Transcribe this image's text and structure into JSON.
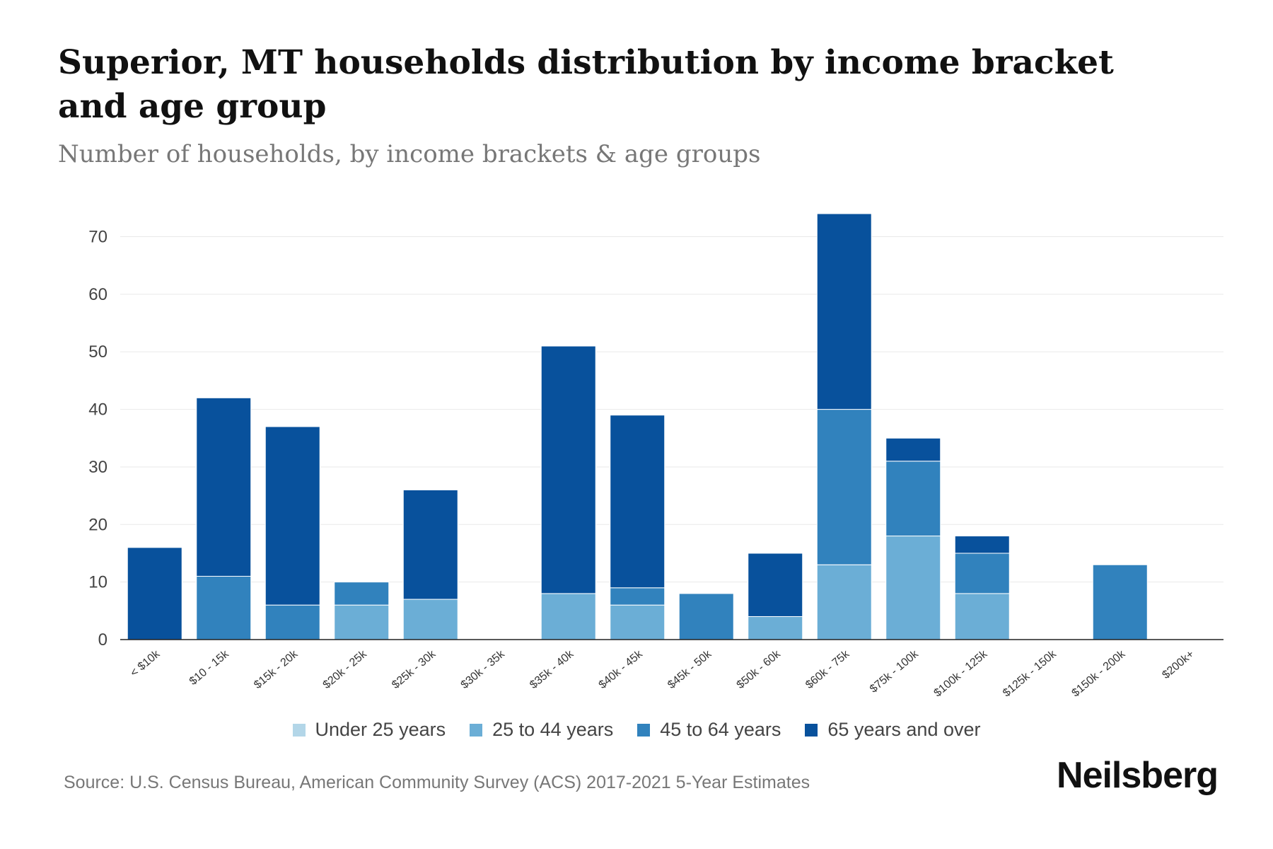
{
  "chart_data": {
    "type": "bar",
    "stacked": true,
    "title": "Superior, MT households distribution by income bracket and age group",
    "subtitle": "Number of households, by income brackets & age groups",
    "xlabel": "",
    "ylabel": "",
    "ylim": [
      0,
      74
    ],
    "yticks": [
      0,
      10,
      20,
      30,
      40,
      50,
      60,
      70
    ],
    "grid": true,
    "legend_position": "bottom-center",
    "categories": [
      "< $10k",
      "$10 - 15k",
      "$15k - 20k",
      "$20k - 25k",
      "$25k - 30k",
      "$30k - 35k",
      "$35k - 40k",
      "$40k - 45k",
      "$45k - 50k",
      "$50k - 60k",
      "$60k - 75k",
      "$75k - 100k",
      "$100k - 125k",
      "$125k - 150k",
      "$150k - 200k",
      "$200k+"
    ],
    "series": [
      {
        "name": "Under 25 years",
        "color": "#b3d6e8",
        "values": [
          0,
          0,
          0,
          0,
          0,
          0,
          0,
          0,
          0,
          0,
          0,
          0,
          0,
          0,
          0,
          0
        ]
      },
      {
        "name": "25 to 44 years",
        "color": "#6baed6",
        "values": [
          0,
          0,
          0,
          6,
          7,
          0,
          8,
          6,
          0,
          4,
          13,
          18,
          8,
          0,
          0,
          0
        ]
      },
      {
        "name": "45 to 64 years",
        "color": "#3182bd",
        "values": [
          0,
          11,
          6,
          4,
          0,
          0,
          0,
          3,
          8,
          0,
          27,
          13,
          7,
          0,
          13,
          0
        ]
      },
      {
        "name": "65 years and over",
        "color": "#08519c",
        "values": [
          16,
          31,
          31,
          0,
          19,
          0,
          43,
          30,
          0,
          11,
          34,
          4,
          3,
          0,
          0,
          0
        ]
      }
    ]
  },
  "source": "Source: U.S. Census Bureau, American Community Survey (ACS) 2017-2021 5-Year Estimates",
  "brand": "Neilsberg"
}
